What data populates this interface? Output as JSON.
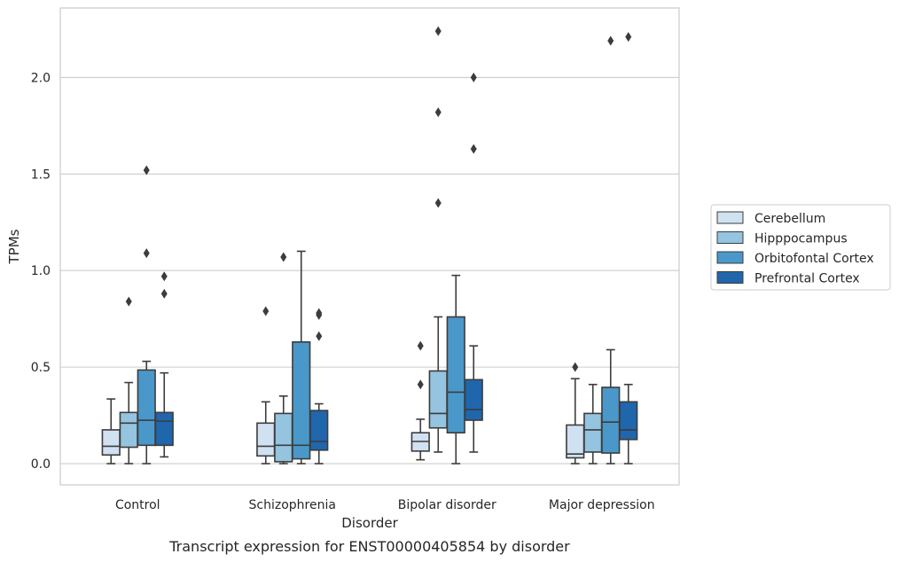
{
  "caption": "Transcript expression for ENST00000405854 by disorder",
  "chart_data": {
    "type": "box",
    "xlabel": "Disorder",
    "ylabel": "TPMs",
    "ylim": [
      -0.11,
      2.36
    ],
    "yticks": [
      0.0,
      0.5,
      1.0,
      1.5,
      2.0
    ],
    "ytick_labels": [
      "0.0",
      "0.5",
      "1.0",
      "1.5",
      "2.0"
    ],
    "grid": "horizontal",
    "legend_position": "right",
    "categories": [
      "Control",
      "Schizophrenia",
      "Bipolar disorder",
      "Major depression"
    ],
    "series": [
      {
        "name": "Cerebellum",
        "color": "#d0e1f2",
        "boxes": [
          {
            "whislo": 0.0,
            "q1": 0.045,
            "median": 0.09,
            "q3": 0.175,
            "whishi": 0.335,
            "fliers": []
          },
          {
            "whislo": 0.0,
            "q1": 0.04,
            "median": 0.09,
            "q3": 0.21,
            "whishi": 0.32,
            "fliers": [
              0.79
            ]
          },
          {
            "whislo": 0.02,
            "q1": 0.065,
            "median": 0.115,
            "q3": 0.16,
            "whishi": 0.23,
            "fliers": [
              0.41,
              0.61
            ]
          },
          {
            "whislo": 0.0,
            "q1": 0.03,
            "median": 0.05,
            "q3": 0.2,
            "whishi": 0.44,
            "fliers": [
              0.5
            ]
          }
        ]
      },
      {
        "name": "Hipppocampus",
        "color": "#94c4df",
        "boxes": [
          {
            "whislo": 0.0,
            "q1": 0.085,
            "median": 0.21,
            "q3": 0.265,
            "whishi": 0.42,
            "fliers": [
              0.84
            ]
          },
          {
            "whislo": 0.0,
            "q1": 0.01,
            "median": 0.095,
            "q3": 0.26,
            "whishi": 0.35,
            "fliers": [
              1.07
            ]
          },
          {
            "whislo": 0.06,
            "q1": 0.185,
            "median": 0.26,
            "q3": 0.48,
            "whishi": 0.76,
            "fliers": [
              1.35,
              1.82,
              2.24
            ]
          },
          {
            "whislo": 0.0,
            "q1": 0.06,
            "median": 0.175,
            "q3": 0.26,
            "whishi": 0.41,
            "fliers": []
          }
        ]
      },
      {
        "name": "Orbitofontal Cortex",
        "color": "#4a98c9",
        "boxes": [
          {
            "whislo": 0.0,
            "q1": 0.095,
            "median": 0.225,
            "q3": 0.485,
            "whishi": 0.53,
            "fliers": [
              1.09,
              1.52
            ]
          },
          {
            "whislo": 0.0,
            "q1": 0.025,
            "median": 0.095,
            "q3": 0.63,
            "whishi": 1.1,
            "fliers": []
          },
          {
            "whislo": 0.0,
            "q1": 0.16,
            "median": 0.37,
            "q3": 0.76,
            "whishi": 0.975,
            "fliers": []
          },
          {
            "whislo": 0.0,
            "q1": 0.055,
            "median": 0.215,
            "q3": 0.395,
            "whishi": 0.59,
            "fliers": [
              2.19
            ]
          }
        ]
      },
      {
        "name": "Prefrontal Cortex",
        "color": "#2066ac",
        "boxes": [
          {
            "whislo": 0.035,
            "q1": 0.095,
            "median": 0.22,
            "q3": 0.265,
            "whishi": 0.47,
            "fliers": [
              0.88,
              0.97
            ]
          },
          {
            "whislo": 0.0,
            "q1": 0.07,
            "median": 0.115,
            "q3": 0.275,
            "whishi": 0.31,
            "fliers": [
              0.66,
              0.77,
              0.78
            ]
          },
          {
            "whislo": 0.06,
            "q1": 0.225,
            "median": 0.28,
            "q3": 0.435,
            "whishi": 0.61,
            "fliers": [
              1.63,
              2.0
            ]
          },
          {
            "whislo": 0.0,
            "q1": 0.125,
            "median": 0.175,
            "q3": 0.32,
            "whishi": 0.41,
            "fliers": [
              2.21
            ]
          }
        ]
      }
    ]
  }
}
